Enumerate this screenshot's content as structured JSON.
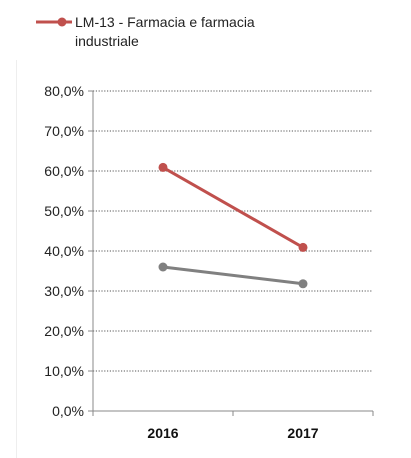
{
  "chart_data": {
    "type": "line",
    "categories": [
      "2016",
      "2017"
    ],
    "series": [
      {
        "name": "LM-13 - Farmacia e farmacia industriale",
        "legend_lines": [
          "LM-13 - Farmacia e farmacia",
          "industriale"
        ],
        "values": [
          60.9,
          40.9
        ],
        "color": "#c0504d"
      },
      {
        "name": "",
        "values": [
          36.0,
          31.8
        ],
        "color": "#808080"
      }
    ],
    "y_ticks": [
      "0,0%",
      "10,0%",
      "20,0%",
      "30,0%",
      "40,0%",
      "50,0%",
      "60,0%",
      "70,0%",
      "80,0%"
    ],
    "ylim": [
      0,
      80
    ],
    "grid": true,
    "grid_style": "dotted",
    "legend_position": "top-left",
    "title": "",
    "xlabel": "",
    "ylabel": ""
  }
}
